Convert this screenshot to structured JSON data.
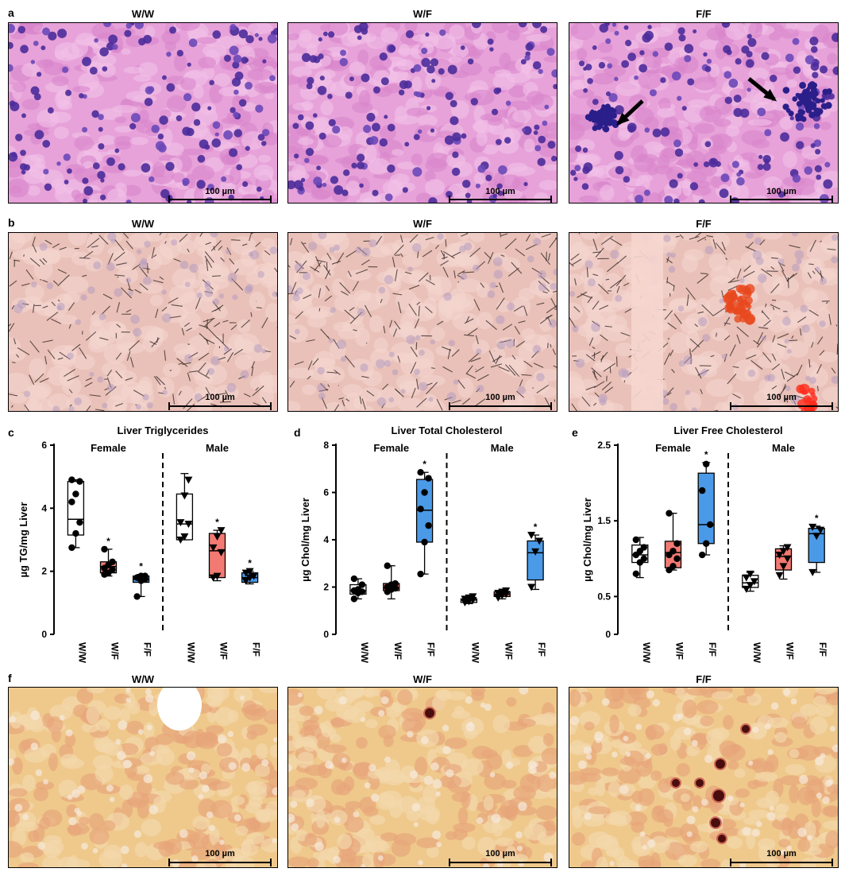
{
  "panels": {
    "a": {
      "label": "a",
      "titles": [
        "W/W",
        "W/F",
        "F/F"
      ],
      "scale": "100 µm"
    },
    "b": {
      "label": "b",
      "titles": [
        "W/W",
        "W/F",
        "F/F"
      ],
      "scale": "100 µm"
    },
    "f": {
      "label": "f",
      "titles": [
        "W/W",
        "W/F",
        "F/F"
      ],
      "scale": "100 µm"
    },
    "c": {
      "label": "c"
    },
    "d": {
      "label": "d"
    },
    "e": {
      "label": "e"
    }
  },
  "colors": {
    "ww": "#ffffff",
    "wf": "#f27a72",
    "ff": "#4a9ae8"
  },
  "chart_data": [
    {
      "type": "box",
      "title": "Liver Triglycerides",
      "ylabel": "µg TG/mg Liver",
      "ylim": [
        0,
        6
      ],
      "yticks": [
        "0",
        "2",
        "4",
        "6"
      ],
      "groups": [
        "Female",
        "Male"
      ],
      "categories": [
        "W/W",
        "W/F",
        "F/F"
      ],
      "boxes": [
        {
          "group": "Female",
          "cat": "W/W",
          "min": 2.75,
          "q1": 3.15,
          "med": 3.65,
          "q3": 4.85,
          "max": 4.9,
          "marker": "circle",
          "points": [
            2.75,
            3.2,
            3.55,
            4.2,
            4.45,
            4.85,
            4.9
          ]
        },
        {
          "group": "Female",
          "cat": "W/F",
          "min": 1.85,
          "q1": 1.95,
          "med": 2.15,
          "q3": 2.3,
          "max": 2.7,
          "marker": "circle",
          "sig": "*",
          "points": [
            1.9,
            1.95,
            2.05,
            2.1,
            2.2,
            2.3,
            2.7
          ]
        },
        {
          "group": "Female",
          "cat": "F/F",
          "min": 1.2,
          "q1": 1.65,
          "med": 1.75,
          "q3": 1.85,
          "max": 1.9,
          "marker": "circle",
          "sig": "*",
          "points": [
            1.2,
            1.7,
            1.75,
            1.8,
            1.85,
            1.85
          ]
        },
        {
          "group": "Male",
          "cat": "W/W",
          "min": 3.0,
          "q1": 3.0,
          "med": 3.5,
          "q3": 4.45,
          "max": 5.1,
          "marker": "triangle",
          "points": [
            3.0,
            3.1,
            3.5,
            3.55,
            4.4,
            4.9
          ]
        },
        {
          "group": "Male",
          "cat": "W/F",
          "min": 1.7,
          "q1": 1.8,
          "med": 2.65,
          "q3": 3.2,
          "max": 3.3,
          "marker": "triangle",
          "sig": "*",
          "points": [
            1.8,
            1.85,
            2.6,
            2.75,
            3.1,
            3.3
          ]
        },
        {
          "group": "Male",
          "cat": "F/F",
          "min": 1.6,
          "q1": 1.65,
          "med": 1.8,
          "q3": 1.95,
          "max": 2.0,
          "marker": "triangle",
          "sig": "*",
          "points": [
            1.7,
            1.8,
            1.85,
            1.95,
            2.0
          ]
        }
      ]
    },
    {
      "type": "box",
      "title": "Liver Total Cholesterol",
      "ylabel": "µg Chol/mg Liver",
      "ylim": [
        0,
        8
      ],
      "yticks": [
        "0",
        "2",
        "4",
        "6",
        "8"
      ],
      "groups": [
        "Female",
        "Male"
      ],
      "categories": [
        "W/W",
        "W/F",
        "F/F"
      ],
      "boxes": [
        {
          "group": "Female",
          "cat": "W/W",
          "min": 1.5,
          "q1": 1.7,
          "med": 1.85,
          "q3": 2.1,
          "max": 2.35,
          "marker": "circle",
          "points": [
            1.5,
            1.75,
            1.8,
            1.85,
            1.9,
            2.1,
            2.35
          ]
        },
        {
          "group": "Female",
          "cat": "W/F",
          "min": 1.5,
          "q1": 1.85,
          "med": 1.95,
          "q3": 2.15,
          "max": 2.9,
          "marker": "circle",
          "points": [
            1.8,
            1.9,
            1.95,
            2.0,
            2.1,
            2.15,
            2.9
          ]
        },
        {
          "group": "Female",
          "cat": "F/F",
          "min": 2.55,
          "q1": 3.9,
          "med": 5.25,
          "q3": 6.55,
          "max": 6.85,
          "marker": "circle",
          "sig": "*",
          "points": [
            2.55,
            3.9,
            4.6,
            5.3,
            6.0,
            6.6,
            6.85
          ]
        },
        {
          "group": "Male",
          "cat": "W/W",
          "min": 1.3,
          "q1": 1.35,
          "med": 1.45,
          "q3": 1.5,
          "max": 1.6,
          "marker": "triangle",
          "points": [
            1.35,
            1.4,
            1.45,
            1.5,
            1.55,
            1.6
          ]
        },
        {
          "group": "Male",
          "cat": "W/F",
          "min": 1.5,
          "q1": 1.6,
          "med": 1.7,
          "q3": 1.8,
          "max": 1.85,
          "marker": "triangle",
          "points": [
            1.55,
            1.65,
            1.7,
            1.75,
            1.8,
            1.85
          ]
        },
        {
          "group": "Male",
          "cat": "F/F",
          "min": 1.9,
          "q1": 2.3,
          "med": 3.45,
          "q3": 3.95,
          "max": 4.2,
          "marker": "triangle",
          "sig": "*",
          "points": [
            2.0,
            3.5,
            3.95,
            4.2
          ]
        }
      ]
    },
    {
      "type": "box",
      "title": "Liver Free Cholesterol",
      "ylabel": "µg Chol/mg Liver",
      "ylim": [
        0,
        2.5
      ],
      "yticks": [
        "0",
        "0.5",
        "1.5",
        "2.5"
      ],
      "ytickvals": [
        0,
        0.5,
        1.5,
        2.5
      ],
      "groups": [
        "Female",
        "Male"
      ],
      "categories": [
        "W/W",
        "W/F",
        "F/F"
      ],
      "boxes": [
        {
          "group": "Female",
          "cat": "W/W",
          "min": 0.75,
          "q1": 0.95,
          "med": 1.05,
          "q3": 1.18,
          "max": 1.28,
          "marker": "circle",
          "points": [
            0.8,
            0.95,
            1.0,
            1.05,
            1.1,
            1.15,
            1.25
          ]
        },
        {
          "group": "Female",
          "cat": "W/F",
          "min": 0.85,
          "q1": 0.88,
          "med": 1.08,
          "q3": 1.23,
          "max": 1.6,
          "marker": "circle",
          "points": [
            0.85,
            0.9,
            1.0,
            1.05,
            1.1,
            1.2,
            1.6
          ]
        },
        {
          "group": "Female",
          "cat": "F/F",
          "min": 1.05,
          "q1": 1.2,
          "med": 1.45,
          "q3": 2.13,
          "max": 2.27,
          "marker": "circle",
          "sig": "*",
          "points": [
            1.05,
            1.2,
            1.45,
            1.9,
            2.25
          ]
        },
        {
          "group": "Male",
          "cat": "W/W",
          "min": 0.57,
          "q1": 0.62,
          "med": 0.68,
          "q3": 0.78,
          "max": 0.82,
          "marker": "triangle",
          "points": [
            0.6,
            0.65,
            0.7,
            0.75,
            0.8
          ]
        },
        {
          "group": "Male",
          "cat": "W/F",
          "min": 0.73,
          "q1": 0.85,
          "med": 1.03,
          "q3": 1.13,
          "max": 1.17,
          "marker": "triangle",
          "points": [
            0.78,
            0.9,
            1.0,
            1.05,
            1.1,
            1.15
          ]
        },
        {
          "group": "Male",
          "cat": "F/F",
          "min": 0.82,
          "q1": 0.95,
          "med": 1.33,
          "q3": 1.4,
          "max": 1.43,
          "marker": "triangle",
          "sig": "*",
          "points": [
            0.82,
            1.3,
            1.38,
            1.42
          ]
        }
      ]
    }
  ]
}
